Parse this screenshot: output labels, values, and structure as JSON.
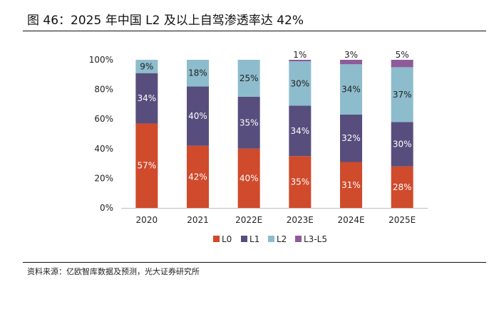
{
  "title": "图 46：2025 年中国 L2 及以上自驾渗透率达 42%",
  "source": "资料来源：亿欧智库数据及预测，光大证券研究所",
  "chart_data": {
    "type": "bar",
    "stacked": true,
    "categories": [
      "2020",
      "2021",
      "2022E",
      "2023E",
      "2024E",
      "2025E"
    ],
    "series": [
      {
        "name": "L0",
        "color": "#d04a2c",
        "values": [
          57,
          42,
          40,
          35,
          31,
          28
        ]
      },
      {
        "name": "L1",
        "color": "#574e7d",
        "values": [
          34,
          40,
          35,
          34,
          32,
          30
        ]
      },
      {
        "name": "L2",
        "color": "#8dbccd",
        "values": [
          9,
          18,
          25,
          30,
          34,
          37
        ]
      },
      {
        "name": "L3-L5",
        "color": "#8e5b9a",
        "values": [
          0,
          0,
          0,
          1,
          3,
          5
        ]
      }
    ],
    "data_labels": [
      [
        "57%",
        "42%",
        "40%",
        "35%",
        "31%",
        "28%"
      ],
      [
        "34%",
        "40%",
        "35%",
        "34%",
        "32%",
        "30%"
      ],
      [
        "9%",
        "18%",
        "25%",
        "30%",
        "34%",
        "37%"
      ],
      [
        "",
        "",
        "",
        "1%",
        "3%",
        "5%"
      ]
    ],
    "y_ticks": [
      "0%",
      "20%",
      "40%",
      "60%",
      "80%",
      "100%"
    ],
    "ylim": [
      0,
      100
    ],
    "legend_position": "bottom",
    "grid": false
  }
}
